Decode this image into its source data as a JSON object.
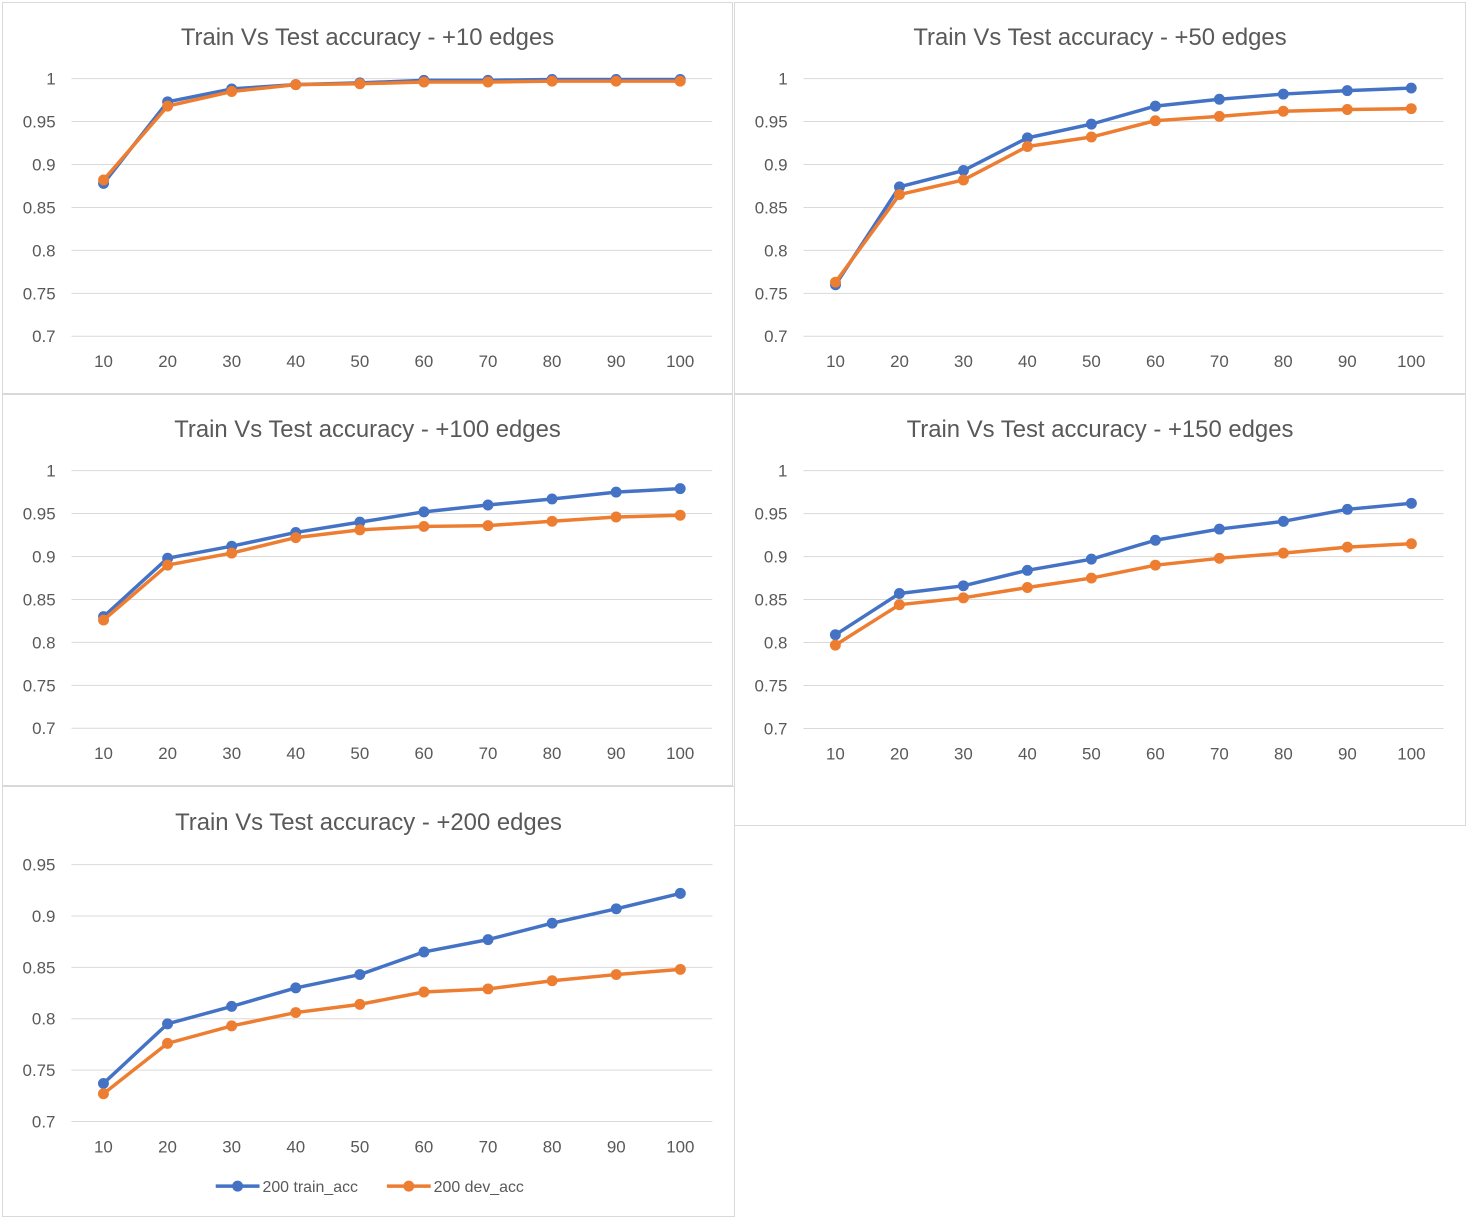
{
  "colors": {
    "train": "#4472c4",
    "dev": "#ed7d31",
    "grid": "#d9d9d9",
    "text": "#595959"
  },
  "chart_data": [
    {
      "type": "line",
      "title": "Train Vs Test accuracy - +10 edges",
      "categories": [
        "10",
        "20",
        "30",
        "40",
        "50",
        "60",
        "70",
        "80",
        "90",
        "100"
      ],
      "yticks": [
        "0.7",
        "0.75",
        "0.8",
        "0.85",
        "0.9",
        "0.95",
        "1"
      ],
      "ylim": [
        0.7,
        1.0
      ],
      "series": [
        {
          "values": [
            0.878,
            0.973,
            0.988,
            0.993,
            0.995,
            0.998,
            0.998,
            0.999,
            0.999,
            0.999
          ]
        },
        {
          "values": [
            0.882,
            0.968,
            0.985,
            0.993,
            0.994,
            0.996,
            0.996,
            0.997,
            0.997,
            0.997
          ]
        }
      ]
    },
    {
      "type": "line",
      "title": "Train Vs Test accuracy - +50 edges",
      "categories": [
        "10",
        "20",
        "30",
        "40",
        "50",
        "60",
        "70",
        "80",
        "90",
        "100"
      ],
      "yticks": [
        "0.7",
        "0.75",
        "0.8",
        "0.85",
        "0.9",
        "0.95",
        "1"
      ],
      "ylim": [
        0.7,
        1.0
      ],
      "series": [
        {
          "values": [
            0.76,
            0.874,
            0.893,
            0.931,
            0.947,
            0.968,
            0.976,
            0.982,
            0.986,
            0.989
          ]
        },
        {
          "values": [
            0.763,
            0.865,
            0.882,
            0.921,
            0.932,
            0.951,
            0.956,
            0.962,
            0.964,
            0.965
          ]
        }
      ]
    },
    {
      "type": "line",
      "title": "Train Vs Test accuracy - +100 edges",
      "categories": [
        "10",
        "20",
        "30",
        "40",
        "50",
        "60",
        "70",
        "80",
        "90",
        "100"
      ],
      "yticks": [
        "0.7",
        "0.75",
        "0.8",
        "0.85",
        "0.9",
        "0.95",
        "1"
      ],
      "ylim": [
        0.7,
        1.0
      ],
      "series": [
        {
          "values": [
            0.83,
            0.898,
            0.912,
            0.928,
            0.94,
            0.952,
            0.96,
            0.967,
            0.975,
            0.979
          ]
        },
        {
          "values": [
            0.826,
            0.89,
            0.904,
            0.922,
            0.931,
            0.935,
            0.936,
            0.941,
            0.946,
            0.948
          ]
        }
      ]
    },
    {
      "type": "line",
      "title": "Train Vs Test accuracy - +150 edges",
      "categories": [
        "10",
        "20",
        "30",
        "40",
        "50",
        "60",
        "70",
        "80",
        "90",
        "100"
      ],
      "yticks": [
        "0.7",
        "0.75",
        "0.8",
        "0.85",
        "0.9",
        "0.95",
        "1"
      ],
      "ylim": [
        0.7,
        1.0
      ],
      "series": [
        {
          "values": [
            0.809,
            0.857,
            0.866,
            0.884,
            0.897,
            0.919,
            0.932,
            0.941,
            0.955,
            0.962
          ]
        },
        {
          "values": [
            0.797,
            0.844,
            0.852,
            0.864,
            0.875,
            0.89,
            0.898,
            0.904,
            0.911,
            0.915
          ]
        }
      ]
    },
    {
      "type": "line",
      "title": "Train Vs Test accuracy - +200 edges",
      "categories": [
        "10",
        "20",
        "30",
        "40",
        "50",
        "60",
        "70",
        "80",
        "90",
        "100"
      ],
      "yticks": [
        "0.7",
        "0.75",
        "0.8",
        "0.85",
        "0.9",
        "0.95"
      ],
      "ylim": [
        0.7,
        0.95
      ],
      "legend": "bottom",
      "series": [
        {
          "name": "200 train_acc",
          "values": [
            0.737,
            0.795,
            0.812,
            0.83,
            0.843,
            0.865,
            0.877,
            0.893,
            0.907,
            0.922
          ]
        },
        {
          "name": "200 dev_acc",
          "values": [
            0.727,
            0.776,
            0.793,
            0.806,
            0.814,
            0.826,
            0.829,
            0.837,
            0.843,
            0.848
          ]
        }
      ]
    }
  ]
}
